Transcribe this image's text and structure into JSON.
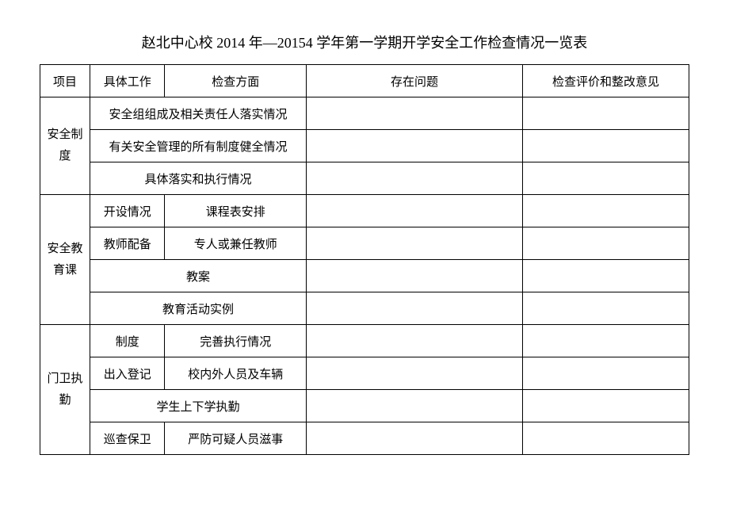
{
  "title": "赵北中心校 2014 年—20154 学年第一学期开学安全工作检查情况一览表",
  "headers": {
    "project": "项目",
    "work": "具体工作",
    "check": "检查方面",
    "problem": "存在问题",
    "opinion": "检查评价和整改意见"
  },
  "sections": {
    "s1": {
      "name": "安全制度",
      "r1": "安全组组成及相关责任人落实情况",
      "r2": "有关安全管理的所有制度健全情况",
      "r3": "具体落实和执行情况"
    },
    "s2": {
      "name": "安全教育课",
      "r1w": "开设情况",
      "r1c": "课程表安排",
      "r2w": "教师配备",
      "r2c": "专人或兼任教师",
      "r3": "教案",
      "r4": "教育活动实例"
    },
    "s3": {
      "name": "门卫执勤",
      "r1w": "制度",
      "r1c": "完善执行情况",
      "r2w": "出入登记",
      "r2c": "校内外人员及车辆",
      "r3": "学生上下学执勤",
      "r4w": "巡查保卫",
      "r4c": "严防可疑人员滋事"
    }
  },
  "style": {
    "background": "#ffffff",
    "border_color": "#000000",
    "text_color": "#000000",
    "title_fontsize": 18,
    "cell_fontsize": 15
  }
}
